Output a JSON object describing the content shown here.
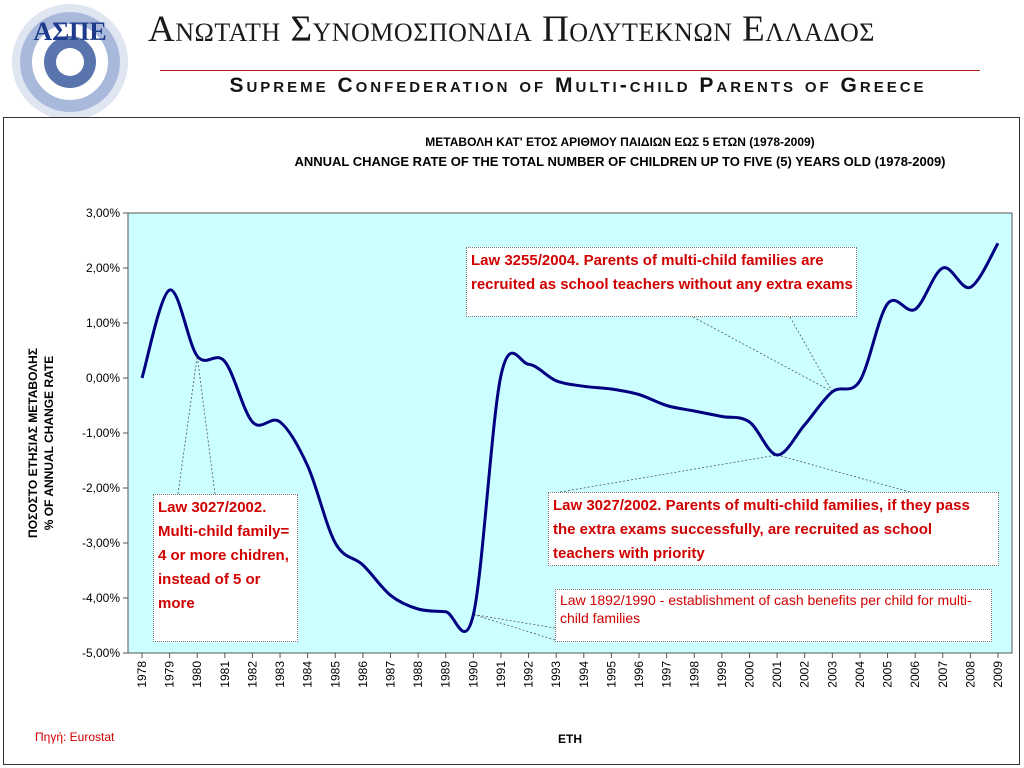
{
  "header": {
    "title_greek": "Ανωτατη Συνομοσπονδια Πολυτεκνων Ελλαδος",
    "title_english": "Supreme Confederation of Multi-child Parents of Greece",
    "logo_text": "ΑΣΠΕ"
  },
  "chart_data": {
    "type": "line",
    "title": "ΜΕΤΑΒΟΛΗ ΚΑΤ' ΕΤΟΣ ΑΡΙΘΜΟΥ ΠΑΙΔΙΩΝ ΕΩΣ 5 ΕΤΩΝ (1978-2009)",
    "subtitle": "ANNUAL CHANGE RATE OF THE TOTAL NUMBER OF CHILDREN UP TO FIVE (5) YEARS OLD (1978-2009)",
    "ylabel_line1": "ΠΟΣΟΣΤΟ ΕΤΗΣΙΑΣ ΜΕΤΑΒΟΛΗΣ",
    "ylabel_line2": "% OF ANNUAL CHANGE RATE",
    "xlabel": "ETH",
    "ylim": [
      -5,
      3
    ],
    "y_ticks": [
      "3,00%",
      "2,00%",
      "1,00%",
      "0,00%",
      "-1,00%",
      "-2,00%",
      "-3,00%",
      "-4,00%",
      "-5,00%"
    ],
    "categories": [
      "1978",
      "1979",
      "1980",
      "1981",
      "1982",
      "1983",
      "1984",
      "1985",
      "1986",
      "1987",
      "1988",
      "1989",
      "1990",
      "1991",
      "1992",
      "1993",
      "1994",
      "1995",
      "1996",
      "1997",
      "1998",
      "1999",
      "2000",
      "2001",
      "2002",
      "2003",
      "2004",
      "2005",
      "2006",
      "2007",
      "2008",
      "2009"
    ],
    "values": [
      0.0,
      1.6,
      0.4,
      0.3,
      -0.8,
      -0.8,
      -1.6,
      -3.0,
      -3.4,
      -3.95,
      -4.2,
      -4.25,
      -4.3,
      0.05,
      0.25,
      -0.05,
      -0.15,
      -0.2,
      -0.3,
      -0.5,
      -0.6,
      -0.7,
      -0.8,
      -1.4,
      -0.85,
      -0.25,
      -0.05,
      1.35,
      1.25,
      2.0,
      1.65,
      2.45
    ],
    "grid": false,
    "plot_background": "#ccffff",
    "line_color": "#000080"
  },
  "annotations": [
    {
      "id": "law-3255",
      "text": "Law 3255/2004. Parents of multi-child families are recruited as school teachers without any extra exams"
    },
    {
      "id": "law-3027-left",
      "text": "Law 3027/2002. Multi-child family= 4 or more chidren, instead of 5 or more"
    },
    {
      "id": "law-3027-right",
      "text": "Law 3027/2002. Parents of multi-child families, if they pass the extra exams successfully, are recruited as school teachers with priority"
    },
    {
      "id": "law-1892",
      "text": "Law 1892/1990 - establishment of cash benefits per child for multi-child families"
    }
  ],
  "source": "Πηγή: Eurostat",
  "colors": {
    "accent_red": "#d10000",
    "header_rule": "#b02020"
  }
}
